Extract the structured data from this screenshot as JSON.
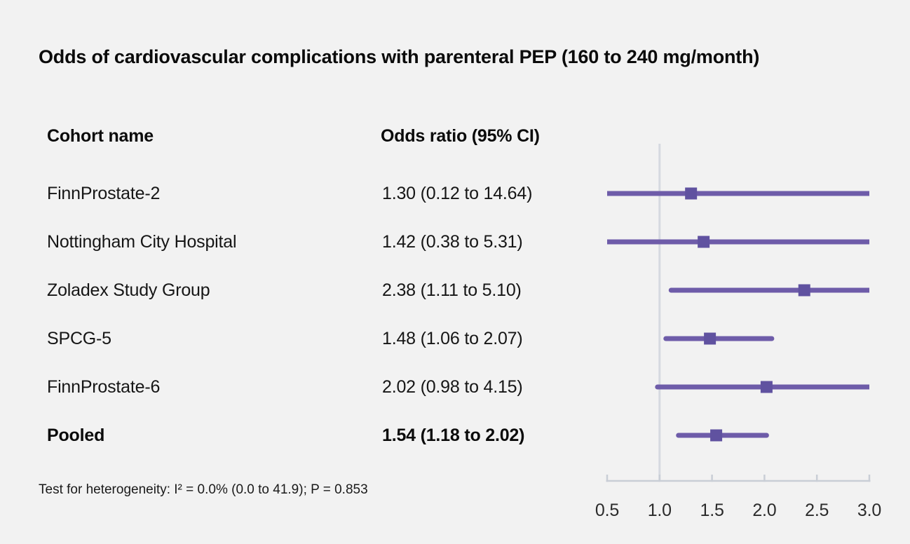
{
  "figure": {
    "title": "Odds of cardiovascular complications with parenteral PEP (160 to 240 mg/month)",
    "columns": {
      "cohort": "Cohort name",
      "odds_ratio": "Odds ratio (95% CI)"
    },
    "footnote": "Test for heterogeneity: I² = 0.0% (0.0 to 41.9); P = 0.853"
  },
  "chart_data": {
    "type": "forest",
    "title": "Odds of cardiovascular complications with parenteral PEP (160 to 240 mg/month)",
    "xlabel": "",
    "ylabel": "",
    "xlim": [
      0.5,
      3.0
    ],
    "x_ticks": [
      "0.5",
      "1.0",
      "1.5",
      "2.0",
      "2.5",
      "3.0"
    ],
    "x_tick_values": [
      0.5,
      1.0,
      1.5,
      2.0,
      2.5,
      3.0
    ],
    "reference_line": 1.0,
    "grid": false,
    "legend": "none",
    "studies": [
      {
        "name": "FinnProstate-2",
        "or": 1.3,
        "ci_low": 0.12,
        "ci_high": 14.64,
        "label": "1.30 (0.12 to 14.64)",
        "pooled": false
      },
      {
        "name": "Nottingham City Hospital",
        "or": 1.42,
        "ci_low": 0.38,
        "ci_high": 5.31,
        "label": "1.42 (0.38 to 5.31)",
        "pooled": false
      },
      {
        "name": "Zoladex Study Group",
        "or": 2.38,
        "ci_low": 1.11,
        "ci_high": 5.1,
        "label": "2.38 (1.11 to 5.10)",
        "pooled": false
      },
      {
        "name": "SPCG-5",
        "or": 1.48,
        "ci_low": 1.06,
        "ci_high": 2.07,
        "label": "1.48 (1.06 to 2.07)",
        "pooled": false
      },
      {
        "name": "FinnProstate-6",
        "or": 2.02,
        "ci_low": 0.98,
        "ci_high": 4.15,
        "label": "2.02 (0.98 to 4.15)",
        "pooled": false
      },
      {
        "name": "Pooled",
        "or": 1.54,
        "ci_low": 1.18,
        "ci_high": 2.02,
        "label": "1.54 (1.18 to 2.02)",
        "pooled": true
      }
    ],
    "colors": {
      "ci_line": "#6e5ca9",
      "marker": "#6052a0",
      "reference_line": "#d5d9e0",
      "axis": "#c9ced6",
      "background": "#f2f2f2",
      "text": "#111111"
    }
  }
}
